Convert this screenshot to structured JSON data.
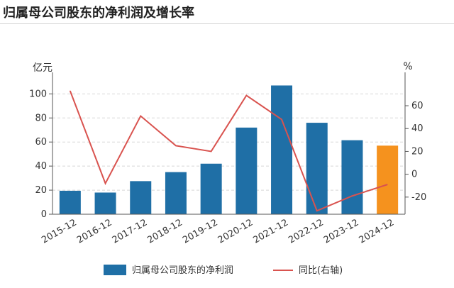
{
  "title": "归属母公司股东的净利润及增长率",
  "chart_data": {
    "type": "bar",
    "categories": [
      "2015-12",
      "2016-12",
      "2017-12",
      "2018-12",
      "2019-12",
      "2020-12",
      "2021-12",
      "2022-12",
      "2023-12",
      "2024-12"
    ],
    "series": [
      {
        "name": "归属母公司股东的净利润",
        "type": "bar",
        "axis": "left",
        "values": [
          19.5,
          18,
          27.5,
          35,
          42,
          72,
          107,
          76,
          61.5,
          57
        ],
        "color": "#1f6fa6",
        "highlight_last_color": "#f5921e"
      },
      {
        "name": "同比(右轴)",
        "type": "line",
        "axis": "right",
        "values": [
          73,
          -8,
          51,
          25,
          20,
          69,
          48,
          -32,
          -19,
          -9
        ],
        "color": "#d9534f"
      }
    ],
    "y_left": {
      "unit": "亿元",
      "ticks": [
        0,
        20,
        40,
        60,
        80,
        100
      ],
      "range": [
        0,
        112
      ]
    },
    "y_right": {
      "unit": "%",
      "ticks": [
        -20,
        0,
        20,
        40,
        60
      ],
      "range": [
        -35,
        83
      ]
    },
    "grid": true,
    "legend": "bottom"
  }
}
